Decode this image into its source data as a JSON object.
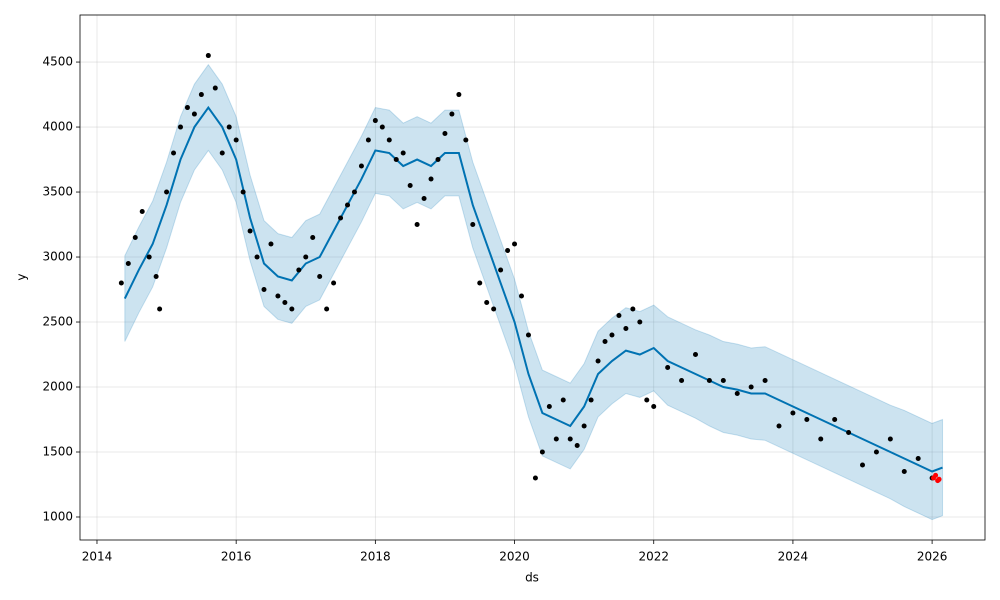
{
  "chart_data": {
    "type": "line",
    "xlabel": "ds",
    "ylabel": "y",
    "xlim": [
      2013.756,
      2026.76
    ],
    "ylim": [
      823,
      4862
    ],
    "xticks": [
      2014,
      2016,
      2018,
      2020,
      2022,
      2024,
      2026
    ],
    "yticks": [
      1000,
      1500,
      2000,
      2500,
      3000,
      3500,
      4000,
      4500
    ],
    "grid": true,
    "series": [
      {
        "type": "area",
        "color": "#0072B2",
        "x": [
          2014.4,
          2014.6,
          2014.8,
          2015.0,
          2015.2,
          2015.4,
          2015.6,
          2015.8,
          2016.0,
          2016.2,
          2016.4,
          2016.6,
          2016.8,
          2017.0,
          2017.2,
          2017.4,
          2017.6,
          2017.8,
          2018.0,
          2018.2,
          2018.4,
          2018.6,
          2018.8,
          2019.0,
          2019.2,
          2019.4,
          2019.6,
          2019.8,
          2020.0,
          2020.2,
          2020.4,
          2020.6,
          2020.8,
          2021.0,
          2021.2,
          2021.4,
          2021.6,
          2021.8,
          2022.0,
          2022.2,
          2022.4,
          2022.6,
          2022.8,
          2023.0,
          2023.2,
          2023.4,
          2023.6,
          2023.8,
          2024.0,
          2024.2,
          2024.4,
          2024.6,
          2024.8,
          2025.0,
          2025.2,
          2025.4,
          2025.6,
          2025.8,
          2026.0,
          2026.15
        ],
        "upper": [
          3010,
          3230,
          3430,
          3730,
          4080,
          4330,
          4480,
          4330,
          4080,
          3630,
          3280,
          3180,
          3150,
          3280,
          3330,
          3530,
          3730,
          3930,
          4150,
          4130,
          4030,
          4080,
          4030,
          4130,
          4130,
          3730,
          3430,
          3130,
          2830,
          2430,
          2130,
          2080,
          2030,
          2180,
          2430,
          2530,
          2610,
          2580,
          2630,
          2540,
          2490,
          2440,
          2400,
          2350,
          2330,
          2300,
          2310,
          2260,
          2210,
          2160,
          2110,
          2060,
          2010,
          1960,
          1910,
          1860,
          1820,
          1770,
          1720,
          1750
        ],
        "lower": [
          2350,
          2570,
          2770,
          3070,
          3420,
          3670,
          3820,
          3670,
          3420,
          2970,
          2620,
          2520,
          2490,
          2620,
          2670,
          2870,
          3070,
          3270,
          3490,
          3470,
          3370,
          3420,
          3370,
          3470,
          3470,
          3070,
          2770,
          2470,
          2170,
          1770,
          1470,
          1420,
          1370,
          1520,
          1770,
          1870,
          1950,
          1920,
          1970,
          1860,
          1810,
          1760,
          1700,
          1650,
          1630,
          1600,
          1590,
          1540,
          1490,
          1440,
          1390,
          1340,
          1290,
          1240,
          1190,
          1140,
          1080,
          1030,
          980,
          1010
        ]
      },
      {
        "type": "line",
        "color": "#0072B2",
        "x": [
          2014.4,
          2014.6,
          2014.8,
          2015.0,
          2015.2,
          2015.4,
          2015.6,
          2015.8,
          2016.0,
          2016.2,
          2016.4,
          2016.6,
          2016.8,
          2017.0,
          2017.2,
          2017.4,
          2017.6,
          2017.8,
          2018.0,
          2018.2,
          2018.4,
          2018.6,
          2018.8,
          2019.0,
          2019.2,
          2019.4,
          2019.6,
          2019.8,
          2020.0,
          2020.2,
          2020.4,
          2020.6,
          2020.8,
          2021.0,
          2021.2,
          2021.4,
          2021.6,
          2021.8,
          2022.0,
          2022.2,
          2022.4,
          2022.6,
          2022.8,
          2023.0,
          2023.2,
          2023.4,
          2023.6,
          2023.8,
          2024.0,
          2024.2,
          2024.4,
          2024.6,
          2024.8,
          2025.0,
          2025.2,
          2025.4,
          2025.6,
          2025.8,
          2026.0,
          2026.15
        ],
        "values": [
          2680,
          2900,
          3100,
          3400,
          3750,
          4000,
          4150,
          4000,
          3750,
          3300,
          2950,
          2850,
          2820,
          2950,
          3000,
          3200,
          3400,
          3600,
          3820,
          3800,
          3700,
          3750,
          3700,
          3800,
          3800,
          3400,
          3100,
          2800,
          2500,
          2100,
          1800,
          1750,
          1700,
          1850,
          2100,
          2200,
          2280,
          2250,
          2300,
          2200,
          2150,
          2100,
          2050,
          2000,
          1980,
          1950,
          1950,
          1900,
          1850,
          1800,
          1750,
          1700,
          1650,
          1600,
          1550,
          1500,
          1450,
          1400,
          1350,
          1380
        ]
      },
      {
        "type": "scatter",
        "color": "#000000",
        "x": [
          2014.35,
          2014.45,
          2014.55,
          2014.65,
          2014.75,
          2014.85,
          2014.9,
          2015.0,
          2015.1,
          2015.2,
          2015.3,
          2015.4,
          2015.5,
          2015.6,
          2015.7,
          2015.8,
          2015.9,
          2016.0,
          2016.1,
          2016.2,
          2016.3,
          2016.4,
          2016.5,
          2016.6,
          2016.7,
          2016.8,
          2016.9,
          2017.0,
          2017.1,
          2017.2,
          2017.3,
          2017.4,
          2017.5,
          2017.6,
          2017.7,
          2017.8,
          2017.9,
          2018.0,
          2018.1,
          2018.2,
          2018.3,
          2018.4,
          2018.5,
          2018.6,
          2018.7,
          2018.8,
          2018.9,
          2019.0,
          2019.1,
          2019.2,
          2019.3,
          2019.4,
          2019.5,
          2019.6,
          2019.7,
          2019.8,
          2019.9,
          2020.0,
          2020.1,
          2020.2,
          2020.3,
          2020.4,
          2020.5,
          2020.6,
          2020.7,
          2020.8,
          2020.9,
          2021.0,
          2021.1,
          2021.2,
          2021.3,
          2021.4,
          2021.5,
          2021.6,
          2021.7,
          2021.8,
          2021.9,
          2022.0,
          2022.2,
          2022.4,
          2022.6,
          2022.8,
          2023.0,
          2023.2,
          2023.4,
          2023.6,
          2023.8,
          2024.0,
          2024.2,
          2024.4,
          2024.6,
          2024.8,
          2025.0,
          2025.2,
          2025.4,
          2025.6,
          2025.8,
          2026.0
        ],
        "values": [
          2800,
          2950,
          3150,
          3350,
          3000,
          2850,
          2600,
          3500,
          3800,
          4000,
          4150,
          4100,
          4250,
          4550,
          4300,
          3800,
          4000,
          3900,
          3500,
          3200,
          3000,
          2750,
          3100,
          2700,
          2650,
          2600,
          2900,
          3000,
          3150,
          2850,
          2600,
          2800,
          3300,
          3400,
          3500,
          3700,
          3900,
          4050,
          4000,
          3900,
          3750,
          3800,
          3550,
          3250,
          3450,
          3600,
          3750,
          3950,
          4100,
          4250,
          3900,
          3250,
          2800,
          2650,
          2600,
          2900,
          3050,
          3100,
          2700,
          2400,
          1300,
          1500,
          1850,
          1600,
          1900,
          1600,
          1550,
          1700,
          1900,
          2200,
          2350,
          2400,
          2550,
          2450,
          2600,
          2500,
          1900,
          1850,
          2150,
          2050,
          2250,
          2050,
          2050,
          1950,
          2000,
          2050,
          1700,
          1800,
          1750,
          1600,
          1750,
          1650,
          1400,
          1500,
          1600,
          1350,
          1450,
          1300
        ]
      },
      {
        "type": "scatter",
        "color": "#ff0000",
        "x": [
          2026.02,
          2026.05,
          2026.08,
          2026.1
        ],
        "values": [
          1300,
          1320,
          1280,
          1290
        ]
      }
    ]
  }
}
